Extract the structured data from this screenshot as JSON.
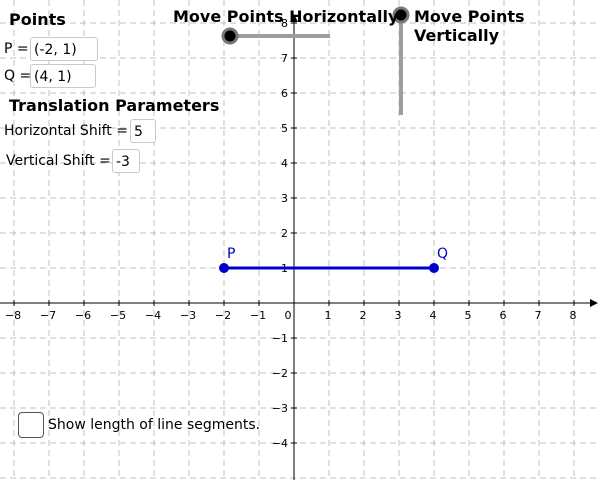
{
  "points_panel": {
    "title": "Points",
    "p_label": "P =",
    "p_value": "(-2, 1)",
    "q_label": "Q =",
    "q_value": "(4, 1)"
  },
  "translation_panel": {
    "title": "Translation Parameters",
    "h_label": "Horizontal Shift =",
    "h_value": "5",
    "v_label": "Vertical Shift =",
    "v_value": "-3"
  },
  "sliders": {
    "horizontal_label": "Move Points Horizontally",
    "vertical_label": "Move Points Vertically"
  },
  "checkbox": {
    "label": "Show length of line segments.",
    "checked": false
  },
  "graph": {
    "x_range": [
      -8,
      8
    ],
    "y_range": [
      -4,
      8
    ],
    "grid": true,
    "x_tick_labels": [
      "−8",
      "−7",
      "−6",
      "−5",
      "−4",
      "−3",
      "−2",
      "−1",
      "0",
      "1",
      "2",
      "3",
      "4",
      "5",
      "6",
      "7",
      "8"
    ],
    "y_tick_labels": [
      "−4",
      "−3",
      "−2",
      "−1",
      "1",
      "2",
      "3",
      "4",
      "5",
      "6",
      "7",
      "8"
    ],
    "points": [
      {
        "name": "P",
        "x": -2,
        "y": 1
      },
      {
        "name": "Q",
        "x": 4,
        "y": 1
      }
    ],
    "segment_color": "#0000cc",
    "slider_track_color": "#9e9e9e"
  }
}
